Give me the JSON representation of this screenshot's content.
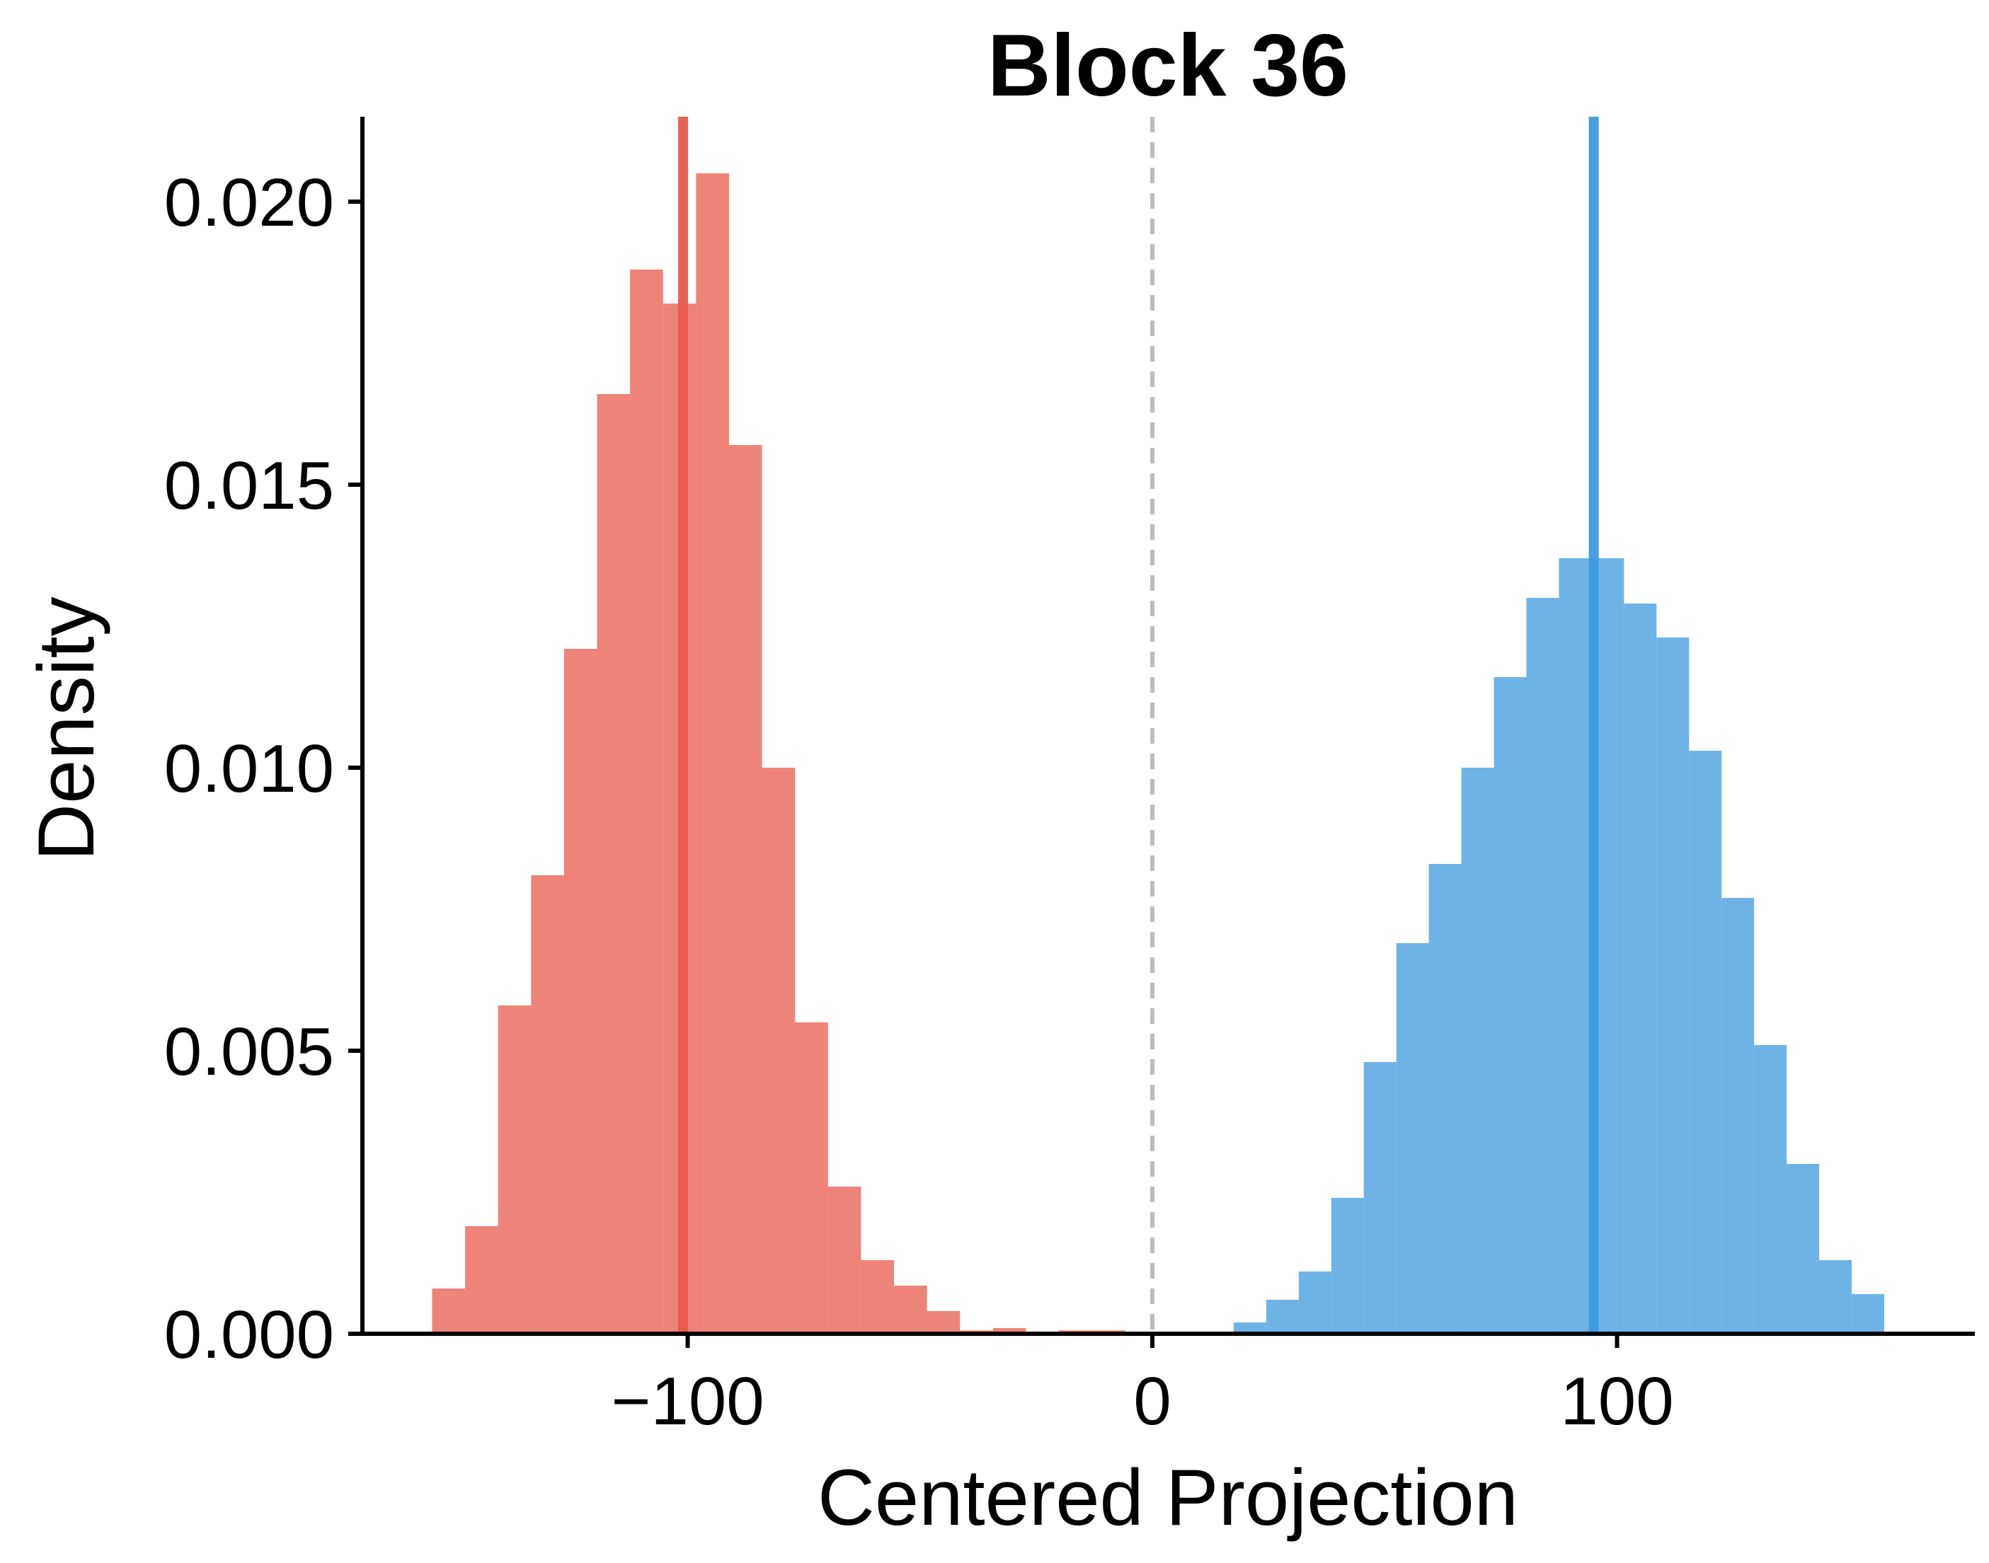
{
  "chart_data": {
    "type": "histogram",
    "title": "Block 36",
    "xlabel": "Centered Projection",
    "ylabel": "Density",
    "xlim": [
      -170,
      177
    ],
    "ylim": [
      0,
      0.0215
    ],
    "xticks": [
      -100,
      0,
      100
    ],
    "xtick_labels": [
      "−100",
      "0",
      "100"
    ],
    "yticks": [
      0,
      0.005,
      0.01,
      0.015,
      0.02
    ],
    "ytick_labels": [
      "0.000",
      "0.005",
      "0.010",
      "0.015",
      "0.020"
    ],
    "grid": false,
    "threshold_line": {
      "x": 0,
      "style": "dashed",
      "color": "#bdbdbd"
    },
    "series": [
      {
        "color": "#e8594a",
        "bar_alpha": 0.75,
        "mean": -101,
        "bin_edges": [
          -155,
          -147.9,
          -140.8,
          -133.7,
          -126.6,
          -119.5,
          -112.4,
          -105.3,
          -98.2,
          -91.1,
          -84.0,
          -76.9,
          -69.8,
          -62.7,
          -55.6,
          -48.5,
          -41.4,
          -34.3,
          -27.2,
          -20.1,
          -13.0,
          -5.9
        ],
        "density": [
          0.0008,
          0.0019,
          0.0058,
          0.0081,
          0.0121,
          0.0166,
          0.0188,
          0.0182,
          0.0205,
          0.0157,
          0.01,
          0.0055,
          0.0026,
          0.0013,
          0.00085,
          0.0004,
          6e-05,
          0.0001,
          0.0,
          6e-05,
          6e-05
        ]
      },
      {
        "color": "#3d9add",
        "bar_alpha": 0.75,
        "mean": 95,
        "bin_edges": [
          17.5,
          24.5,
          31.5,
          38.5,
          45.5,
          52.5,
          59.5,
          66.5,
          73.5,
          80.5,
          87.5,
          94.5,
          101.5,
          108.5,
          115.5,
          122.5,
          129.5,
          136.5,
          143.5,
          150.5,
          157.5
        ],
        "density": [
          0.0002,
          0.0006,
          0.0011,
          0.0024,
          0.0048,
          0.0069,
          0.0083,
          0.01,
          0.0116,
          0.013,
          0.0137,
          0.0137,
          0.0129,
          0.0123,
          0.0103,
          0.0077,
          0.0051,
          0.003,
          0.0013,
          0.0007
        ]
      }
    ]
  }
}
